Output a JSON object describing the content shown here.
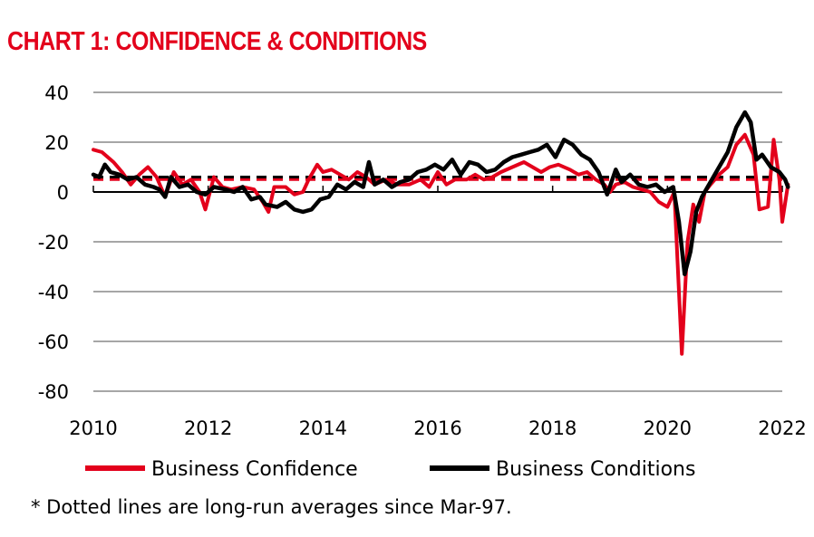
{
  "title": "CHART 1: CONFIDENCE & CONDITIONS",
  "footnote": "* Dotted lines are long-run averages since Mar-97.",
  "colors": {
    "confidence": "#e3001b",
    "conditions": "#000000",
    "grid": "#a6a6a6"
  },
  "chart_data": {
    "type": "line",
    "title": "CHART 1: CONFIDENCE & CONDITIONS",
    "xlabel": "",
    "ylabel": "",
    "xlim": [
      2010,
      2022
    ],
    "ylim": [
      -80,
      40
    ],
    "x_ticks": [
      "2010",
      "2012",
      "2014",
      "2016",
      "2018",
      "2020",
      "2022"
    ],
    "y_ticks": [
      "40",
      "20",
      "0",
      "-20",
      "-40",
      "-60",
      "-80"
    ],
    "grid": true,
    "legend_position": "bottom",
    "series": [
      {
        "name": "Business Confidence",
        "color": "#e3001b",
        "long_run_average": 5,
        "points": [
          [
            2010.0,
            17
          ],
          [
            2010.15,
            16
          ],
          [
            2010.35,
            12
          ],
          [
            2010.5,
            8
          ],
          [
            2010.65,
            3
          ],
          [
            2010.8,
            7
          ],
          [
            2010.95,
            10
          ],
          [
            2011.1,
            6
          ],
          [
            2011.25,
            -2
          ],
          [
            2011.4,
            8
          ],
          [
            2011.55,
            3
          ],
          [
            2011.7,
            5
          ],
          [
            2011.85,
            0
          ],
          [
            2011.95,
            -7
          ],
          [
            2012.1,
            6
          ],
          [
            2012.25,
            2
          ],
          [
            2012.4,
            1
          ],
          [
            2012.6,
            2
          ],
          [
            2012.8,
            1
          ],
          [
            2012.95,
            -4
          ],
          [
            2013.05,
            -8
          ],
          [
            2013.15,
            2
          ],
          [
            2013.35,
            2
          ],
          [
            2013.5,
            -1
          ],
          [
            2013.65,
            0
          ],
          [
            2013.75,
            5
          ],
          [
            2013.9,
            11
          ],
          [
            2014.0,
            8
          ],
          [
            2014.15,
            9
          ],
          [
            2014.3,
            7
          ],
          [
            2014.45,
            5
          ],
          [
            2014.6,
            8
          ],
          [
            2014.75,
            6
          ],
          [
            2014.9,
            3
          ],
          [
            2015.1,
            5
          ],
          [
            2015.3,
            3
          ],
          [
            2015.5,
            3
          ],
          [
            2015.7,
            5
          ],
          [
            2015.85,
            2
          ],
          [
            2016.0,
            8
          ],
          [
            2016.15,
            3
          ],
          [
            2016.3,
            5
          ],
          [
            2016.5,
            5
          ],
          [
            2016.65,
            7
          ],
          [
            2016.8,
            5
          ],
          [
            2016.95,
            6
          ],
          [
            2017.1,
            8
          ],
          [
            2017.3,
            10
          ],
          [
            2017.5,
            12
          ],
          [
            2017.65,
            10
          ],
          [
            2017.8,
            8
          ],
          [
            2017.95,
            10
          ],
          [
            2018.1,
            11
          ],
          [
            2018.3,
            9
          ],
          [
            2018.45,
            7
          ],
          [
            2018.6,
            8
          ],
          [
            2018.75,
            5
          ],
          [
            2018.9,
            3
          ],
          [
            2019.0,
            0
          ],
          [
            2019.1,
            3
          ],
          [
            2019.25,
            4
          ],
          [
            2019.4,
            2
          ],
          [
            2019.55,
            1
          ],
          [
            2019.7,
            0
          ],
          [
            2019.85,
            -4
          ],
          [
            2020.0,
            -6
          ],
          [
            2020.12,
            0
          ],
          [
            2020.25,
            -65
          ],
          [
            2020.35,
            -20
          ],
          [
            2020.45,
            -5
          ],
          [
            2020.55,
            -12
          ],
          [
            2020.65,
            0
          ],
          [
            2020.75,
            3
          ],
          [
            2020.9,
            7
          ],
          [
            2021.05,
            10
          ],
          [
            2021.2,
            19
          ],
          [
            2021.35,
            23
          ],
          [
            2021.5,
            15
          ],
          [
            2021.6,
            -7
          ],
          [
            2021.75,
            -6
          ],
          [
            2021.85,
            21
          ],
          [
            2021.95,
            5
          ],
          [
            2022.0,
            -12
          ],
          [
            2022.1,
            3
          ]
        ]
      },
      {
        "name": "Business Conditions",
        "color": "#000000",
        "long_run_average": 6,
        "points": [
          [
            2010.0,
            7
          ],
          [
            2010.1,
            6
          ],
          [
            2010.2,
            11
          ],
          [
            2010.3,
            8
          ],
          [
            2010.45,
            7
          ],
          [
            2010.6,
            5
          ],
          [
            2010.75,
            6
          ],
          [
            2010.9,
            3
          ],
          [
            2011.05,
            2
          ],
          [
            2011.15,
            1
          ],
          [
            2011.25,
            -2
          ],
          [
            2011.35,
            6
          ],
          [
            2011.5,
            2
          ],
          [
            2011.65,
            3
          ],
          [
            2011.8,
            0
          ],
          [
            2011.95,
            -1
          ],
          [
            2012.1,
            2
          ],
          [
            2012.3,
            1
          ],
          [
            2012.45,
            0
          ],
          [
            2012.6,
            2
          ],
          [
            2012.75,
            -3
          ],
          [
            2012.9,
            -2
          ],
          [
            2013.0,
            -5
          ],
          [
            2013.2,
            -6
          ],
          [
            2013.35,
            -4
          ],
          [
            2013.5,
            -7
          ],
          [
            2013.65,
            -8
          ],
          [
            2013.8,
            -7
          ],
          [
            2013.95,
            -3
          ],
          [
            2014.1,
            -2
          ],
          [
            2014.25,
            3
          ],
          [
            2014.4,
            1
          ],
          [
            2014.55,
            4
          ],
          [
            2014.7,
            2
          ],
          [
            2014.8,
            12
          ],
          [
            2014.9,
            3
          ],
          [
            2015.05,
            5
          ],
          [
            2015.2,
            2
          ],
          [
            2015.35,
            4
          ],
          [
            2015.5,
            5
          ],
          [
            2015.65,
            8
          ],
          [
            2015.8,
            9
          ],
          [
            2015.95,
            11
          ],
          [
            2016.1,
            9
          ],
          [
            2016.25,
            13
          ],
          [
            2016.4,
            7
          ],
          [
            2016.55,
            12
          ],
          [
            2016.7,
            11
          ],
          [
            2016.85,
            8
          ],
          [
            2017.0,
            9
          ],
          [
            2017.15,
            12
          ],
          [
            2017.3,
            14
          ],
          [
            2017.45,
            15
          ],
          [
            2017.6,
            16
          ],
          [
            2017.75,
            17
          ],
          [
            2017.9,
            19
          ],
          [
            2018.05,
            14
          ],
          [
            2018.2,
            21
          ],
          [
            2018.35,
            19
          ],
          [
            2018.5,
            15
          ],
          [
            2018.65,
            13
          ],
          [
            2018.8,
            8
          ],
          [
            2018.95,
            -1
          ],
          [
            2019.1,
            9
          ],
          [
            2019.2,
            4
          ],
          [
            2019.35,
            7
          ],
          [
            2019.5,
            3
          ],
          [
            2019.65,
            2
          ],
          [
            2019.8,
            3
          ],
          [
            2019.95,
            0
          ],
          [
            2020.1,
            2
          ],
          [
            2020.2,
            -12
          ],
          [
            2020.3,
            -33
          ],
          [
            2020.4,
            -24
          ],
          [
            2020.5,
            -8
          ],
          [
            2020.6,
            -2
          ],
          [
            2020.75,
            4
          ],
          [
            2020.9,
            10
          ],
          [
            2021.05,
            16
          ],
          [
            2021.2,
            26
          ],
          [
            2021.35,
            32
          ],
          [
            2021.45,
            28
          ],
          [
            2021.55,
            13
          ],
          [
            2021.65,
            15
          ],
          [
            2021.8,
            10
          ],
          [
            2021.95,
            8
          ],
          [
            2022.05,
            5
          ],
          [
            2022.1,
            2
          ]
        ]
      }
    ]
  }
}
